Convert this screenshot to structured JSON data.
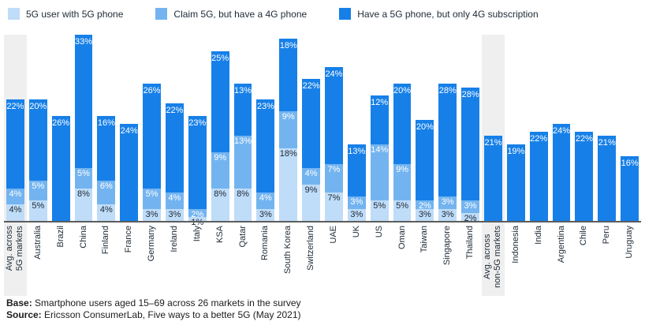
{
  "chart_data": {
    "type": "bar",
    "stacked": true,
    "unit": "%",
    "ylim": [
      0,
      46
    ],
    "grid": false,
    "legend_position": "top",
    "categories": [
      "Avg. across\n5G markets",
      "Australia",
      "Brazil",
      "China",
      "Finland",
      "France",
      "Germany",
      "Ireland",
      "Italy",
      "KSA",
      "Qatar",
      "Romania",
      "South Korea",
      "Switzerland",
      "UAE",
      "UK",
      "US",
      "Oman",
      "Taiwan",
      "Singapore",
      "Thailand",
      "Avg. across\nnon-5G markets",
      "Indonesia",
      "India",
      "Argentina",
      "Chile",
      "Peru",
      "Uruguay"
    ],
    "highlight_indices": [
      0,
      21
    ],
    "highlight_color": "#efefef",
    "axis_line_color": "#5d5d5d",
    "series": [
      {
        "name": "5G user with 5G phone",
        "color": "#BFDCF8",
        "values": [
          4,
          5,
          0,
          8,
          4,
          0,
          3,
          3,
          1,
          8,
          8,
          3,
          18,
          9,
          7,
          3,
          5,
          5,
          3,
          3,
          2,
          0,
          0,
          0,
          0,
          0,
          0,
          0
        ]
      },
      {
        "name": "Claim 5G, but have a 4G phone",
        "color": "#73B4F0",
        "values": [
          4,
          5,
          0,
          5,
          6,
          0,
          5,
          4,
          2,
          9,
          13,
          4,
          9,
          4,
          7,
          3,
          14,
          9,
          2,
          3,
          3,
          0,
          0,
          0,
          0,
          0,
          0,
          0
        ]
      },
      {
        "name": "Have a 5G phone, but only 4G subscription",
        "color": "#1780E8",
        "values": [
          22,
          20,
          26,
          33,
          16,
          24,
          26,
          22,
          23,
          25,
          13,
          23,
          18,
          22,
          24,
          13,
          12,
          20,
          20,
          28,
          28,
          21,
          19,
          22,
          24,
          22,
          21,
          16
        ]
      }
    ]
  },
  "footer": {
    "base_label": "Base:",
    "base_text": "Smartphone users aged 15–69 across 26 markets in the survey",
    "source_label": "Source:",
    "source_text": "Ericsson ConsumerLab, Five ways to a better 5G (May 2021)"
  }
}
